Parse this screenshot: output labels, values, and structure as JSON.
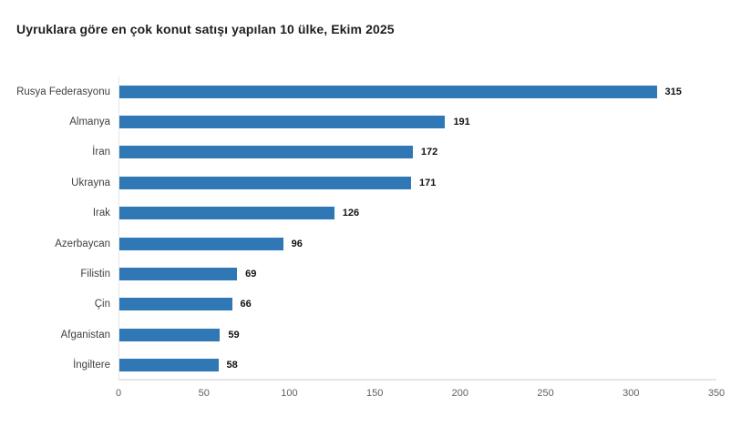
{
  "chart_data": {
    "type": "bar",
    "orientation": "horizontal",
    "title": "Uyruklara göre en çok konut satışı yapılan 10 ülke, Ekim 2025",
    "categories": [
      "Rusya Federasyonu",
      "Almanya",
      "İran",
      "Ukrayna",
      "Irak",
      "Azerbaycan",
      "Filistin",
      "Çin",
      "Afganistan",
      "İngiltere"
    ],
    "values": [
      315,
      191,
      172,
      171,
      126,
      96,
      69,
      66,
      59,
      58
    ],
    "xlabel": "",
    "ylabel": "",
    "xlim": [
      0,
      350
    ],
    "x_ticks": [
      0,
      50,
      100,
      150,
      200,
      250,
      300,
      350
    ],
    "grid": false,
    "legend": false,
    "value_labels_shown": true,
    "colors": {
      "bar": "#2f78b5",
      "axis_line": "#e6e6e6",
      "tick_label": "#5f5f5f",
      "category_label": "#404040",
      "value_label": "#111111",
      "title": "#1f1f1f",
      "background": "#ffffff"
    }
  }
}
